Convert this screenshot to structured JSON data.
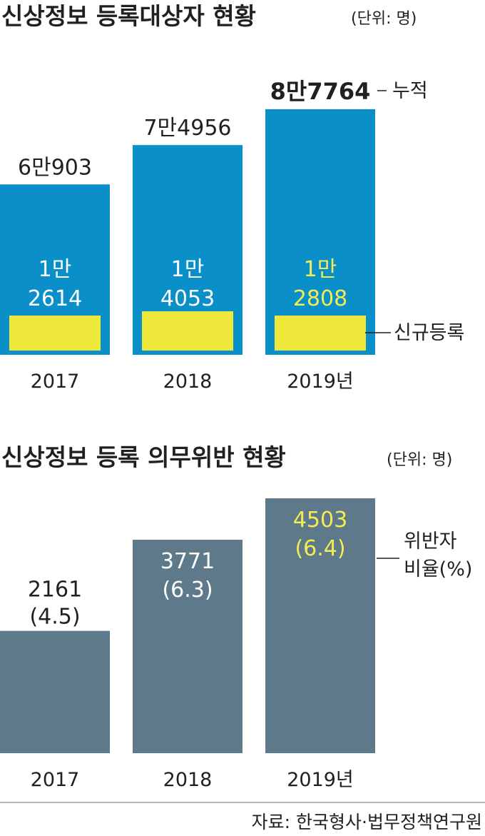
{
  "colors": {
    "cumulative_bar": "#0a8fc9",
    "new_bar": "#ede83a",
    "violation_bar": "#5e798a",
    "text": "#231f20",
    "highlight_text": "#f4ec54",
    "white_text": "#ffffff",
    "rule": "#9a9a9a"
  },
  "chart_data": [
    {
      "type": "bar",
      "title": "신상정보 등록대상자 현황",
      "unit_note": "(단위: 명)",
      "categories": [
        "2017",
        "2018",
        "2019년"
      ],
      "series": [
        {
          "name": "누적",
          "values": [
            60903,
            74956,
            87764
          ],
          "labels": [
            "6만903",
            "7만4956",
            "8만7764"
          ]
        },
        {
          "name": "신규등록",
          "values": [
            12614,
            14053,
            12808
          ],
          "label_lines": [
            [
              "1만",
              "2614"
            ],
            [
              "1만",
              "4053"
            ],
            [
              "1만",
              "2808"
            ]
          ]
        }
      ],
      "legend": [
        "누적",
        "신규등록"
      ],
      "legend_placement": "right",
      "grid": false
    },
    {
      "type": "bar",
      "title": "신상정보 등록 의무위반 현황",
      "unit_note": "(단위: 명)",
      "categories": [
        "2017",
        "2018",
        "2019년"
      ],
      "series": [
        {
          "name": "위반자",
          "values": [
            2161,
            3771,
            4503
          ],
          "ratios": [
            4.5,
            6.3,
            6.4
          ],
          "label_lines": [
            [
              "2161",
              "(4.5)"
            ],
            [
              "3771",
              "(6.3)"
            ],
            [
              "4503",
              "(6.4)"
            ]
          ]
        }
      ],
      "legend_lines": [
        "위반자",
        "비율(%)"
      ],
      "legend_placement": "right",
      "grid": false
    }
  ],
  "source": "자료: 한국형사·법무정책연구원"
}
